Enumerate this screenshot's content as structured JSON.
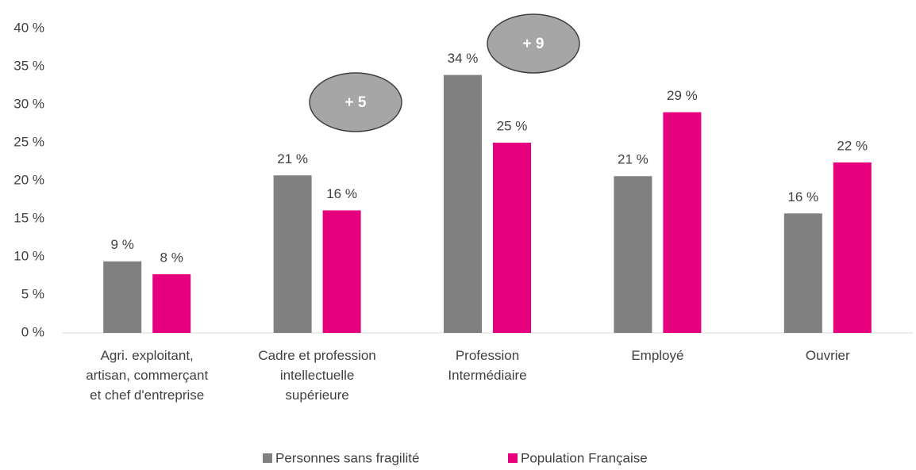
{
  "chart_data": {
    "type": "bar",
    "categories": [
      "Agri. exploitant,\nartisan, commerçant\net chef d'entreprise",
      "Cadre et profession\nintellectuelle\nsupérieure",
      "Profession\nIntermédiaire",
      "Employé",
      "Ouvrier"
    ],
    "series": [
      {
        "name": "Personnes sans fragilité",
        "color": "#808080",
        "values": [
          9.4,
          20.7,
          33.9,
          20.6,
          15.7
        ],
        "value_labels": [
          "9 %",
          "21 %",
          "34 %",
          "21 %",
          "16 %"
        ]
      },
      {
        "name": "Population Française",
        "color": "#e6007e",
        "values": [
          7.7,
          16.1,
          25.0,
          29.0,
          22.4
        ],
        "value_labels": [
          "8 %",
          "16 %",
          "25 %",
          "29 %",
          "22 %"
        ]
      }
    ],
    "ylim": [
      0,
      40
    ],
    "yticks": [
      {
        "value": 0,
        "label": "0 %"
      },
      {
        "value": 5,
        "label": "5 %"
      },
      {
        "value": 10,
        "label": "10 %"
      },
      {
        "value": 15,
        "label": "15 %"
      },
      {
        "value": 20,
        "label": "20 %"
      },
      {
        "value": 25,
        "label": "25 %"
      },
      {
        "value": 30,
        "label": "30 %"
      },
      {
        "value": 35,
        "label": "35 %"
      },
      {
        "value": 40,
        "label": "40 %"
      }
    ],
    "annotations": [
      "+ 5",
      "+ 9"
    ],
    "grid": false,
    "legend": "bottom"
  }
}
